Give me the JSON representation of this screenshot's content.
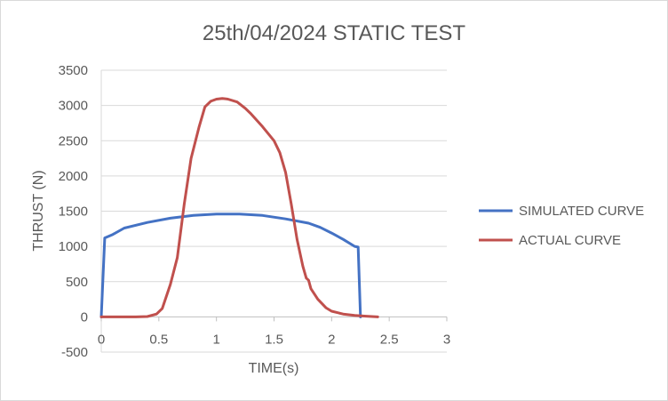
{
  "chart_data": {
    "type": "line",
    "title": "25th/04/2024 STATIC TEST",
    "xlabel": "TIME(s)",
    "ylabel": "THRUST (N)",
    "xlim": [
      0,
      3
    ],
    "ylim": [
      -500,
      3500
    ],
    "x_ticks": [
      0,
      0.5,
      1,
      1.5,
      2,
      2.5,
      3
    ],
    "x_tick_labels": [
      "0",
      "0.5",
      "1",
      "1.5",
      "2",
      "2.5",
      "3"
    ],
    "y_ticks": [
      -500,
      0,
      500,
      1000,
      1500,
      2000,
      2500,
      3000,
      3500
    ],
    "y_tick_labels": [
      "-500",
      "0",
      "500",
      "1000",
      "1500",
      "2000",
      "2500",
      "3000",
      "3500"
    ],
    "grid": "horizontal",
    "legend_position": "right",
    "series": [
      {
        "name": "SIMULATED CURVE",
        "color": "#4472c4",
        "points": [
          [
            0.0,
            0
          ],
          [
            0.03,
            1120
          ],
          [
            0.1,
            1170
          ],
          [
            0.2,
            1260
          ],
          [
            0.4,
            1340
          ],
          [
            0.6,
            1400
          ],
          [
            0.8,
            1440
          ],
          [
            1.0,
            1460
          ],
          [
            1.2,
            1460
          ],
          [
            1.4,
            1440
          ],
          [
            1.6,
            1390
          ],
          [
            1.8,
            1330
          ],
          [
            1.9,
            1270
          ],
          [
            2.0,
            1190
          ],
          [
            2.1,
            1100
          ],
          [
            2.2,
            1000
          ],
          [
            2.23,
            990
          ],
          [
            2.25,
            0
          ]
        ]
      },
      {
        "name": "ACTUAL CURVE",
        "color": "#c0504d",
        "points": [
          [
            0.0,
            0
          ],
          [
            0.2,
            0
          ],
          [
            0.3,
            0
          ],
          [
            0.4,
            5
          ],
          [
            0.48,
            40
          ],
          [
            0.53,
            120
          ],
          [
            0.6,
            460
          ],
          [
            0.66,
            840
          ],
          [
            0.72,
            1600
          ],
          [
            0.78,
            2250
          ],
          [
            0.85,
            2700
          ],
          [
            0.9,
            2980
          ],
          [
            0.95,
            3060
          ],
          [
            1.0,
            3090
          ],
          [
            1.05,
            3100
          ],
          [
            1.1,
            3090
          ],
          [
            1.18,
            3050
          ],
          [
            1.25,
            2960
          ],
          [
            1.3,
            2880
          ],
          [
            1.4,
            2700
          ],
          [
            1.5,
            2500
          ],
          [
            1.55,
            2330
          ],
          [
            1.6,
            2050
          ],
          [
            1.65,
            1600
          ],
          [
            1.7,
            1100
          ],
          [
            1.75,
            720
          ],
          [
            1.78,
            550
          ],
          [
            1.8,
            520
          ],
          [
            1.82,
            400
          ],
          [
            1.88,
            250
          ],
          [
            1.95,
            130
          ],
          [
            2.0,
            80
          ],
          [
            2.1,
            40
          ],
          [
            2.2,
            20
          ],
          [
            2.3,
            10
          ],
          [
            2.4,
            0
          ]
        ]
      }
    ]
  }
}
